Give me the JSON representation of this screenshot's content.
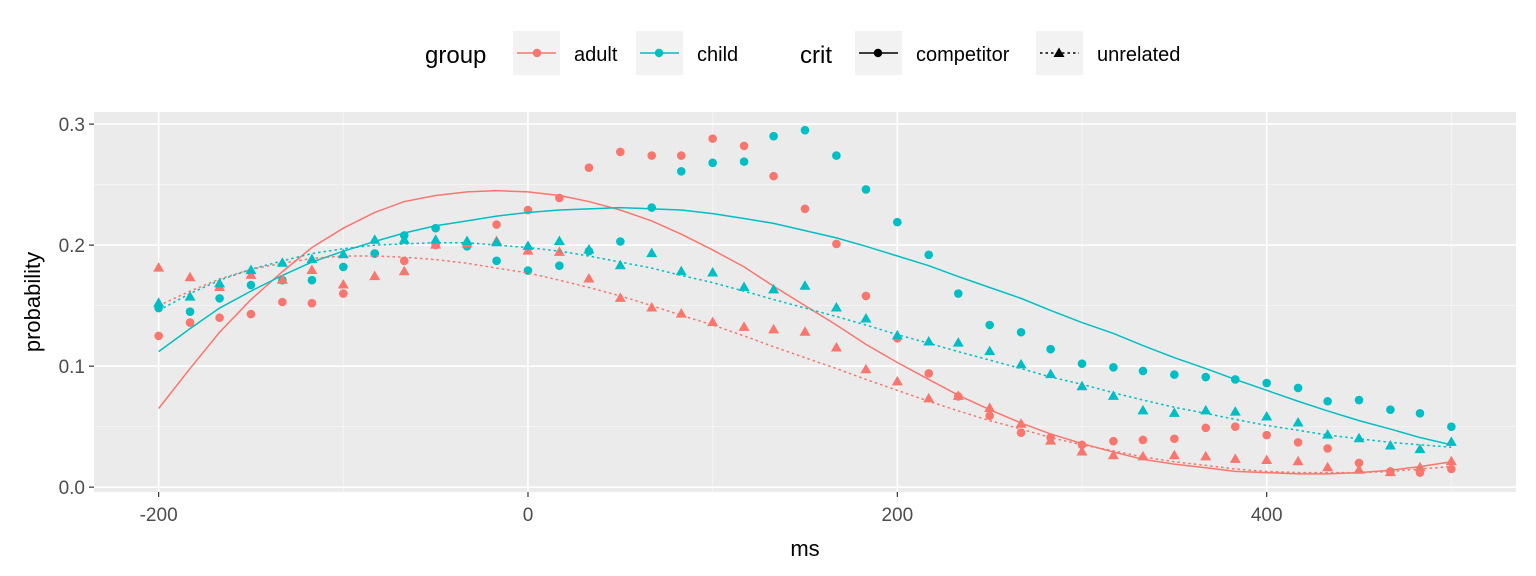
{
  "chart_data": {
    "type": "scatter",
    "xlabel": "ms",
    "ylabel": "probability",
    "xlim": [
      -235,
      535
    ],
    "ylim": [
      -0.004,
      0.31
    ],
    "x_ticks": [
      -200,
      0,
      200,
      400
    ],
    "y_ticks": [
      0.0,
      0.1,
      0.2,
      0.3
    ],
    "x_tick_labels": [
      "-200",
      "0",
      "200",
      "400"
    ],
    "y_tick_labels": [
      "0.0",
      "0.1",
      "0.2",
      "0.3"
    ],
    "grid": true,
    "legend_position": "top",
    "legend": {
      "group_title": "group",
      "crit_title": "crit",
      "group_items": [
        {
          "label": "adult",
          "color": "#F8766D"
        },
        {
          "label": "child",
          "color": "#00BFC4"
        }
      ],
      "crit_items": [
        {
          "label": "competitor",
          "marker": "circle",
          "line": "solid"
        },
        {
          "label": "unrelated",
          "marker": "triangle",
          "line": "dotted"
        }
      ]
    },
    "x": [
      -200,
      -183,
      -167,
      -150,
      -133,
      -117,
      -100,
      -83,
      -67,
      -50,
      -33,
      -17,
      0,
      17,
      33,
      50,
      67,
      83,
      100,
      117,
      133,
      150,
      167,
      183,
      200,
      217,
      233,
      250,
      267,
      283,
      300,
      317,
      333,
      350,
      367,
      383,
      400,
      417,
      433,
      450,
      467,
      483,
      500
    ],
    "series": [
      {
        "name": "adult",
        "crit": "competitor",
        "color": "#F8766D",
        "marker": "circle",
        "points": [
          0.125,
          0.136,
          0.14,
          0.143,
          0.153,
          0.152,
          0.16,
          0.193,
          0.187,
          0.2,
          0.201,
          0.217,
          0.229,
          0.239,
          0.264,
          0.277,
          0.274,
          0.274,
          0.288,
          0.282,
          0.257,
          0.23,
          0.201,
          0.158,
          0.123,
          0.094,
          0.075,
          0.059,
          0.045,
          0.041,
          0.035,
          0.038,
          0.039,
          0.04,
          0.049,
          0.05,
          0.043,
          0.037,
          0.032,
          0.02,
          0.013,
          0.012,
          0.015
        ],
        "curve": [
          0.065,
          0.098,
          0.128,
          0.155,
          0.178,
          0.198,
          0.214,
          0.227,
          0.236,
          0.241,
          0.244,
          0.245,
          0.244,
          0.241,
          0.236,
          0.229,
          0.22,
          0.209,
          0.196,
          0.182,
          0.166,
          0.15,
          0.134,
          0.118,
          0.103,
          0.089,
          0.076,
          0.064,
          0.053,
          0.044,
          0.036,
          0.029,
          0.023,
          0.019,
          0.016,
          0.013,
          0.012,
          0.011,
          0.011,
          0.012,
          0.014,
          0.017,
          0.021
        ]
      },
      {
        "name": "child",
        "crit": "competitor",
        "color": "#00BFC4",
        "marker": "circle",
        "points": [
          0.148,
          0.145,
          0.156,
          0.167,
          0.171,
          0.171,
          0.182,
          0.193,
          0.208,
          0.214,
          0.199,
          0.187,
          0.179,
          0.183,
          0.195,
          0.203,
          0.231,
          0.261,
          0.268,
          0.269,
          0.29,
          0.295,
          0.274,
          0.246,
          0.219,
          0.192,
          0.16,
          0.134,
          0.128,
          0.114,
          0.102,
          0.099,
          0.096,
          0.093,
          0.091,
          0.089,
          0.086,
          0.082,
          0.071,
          0.072,
          0.064,
          0.061,
          0.05
        ],
        "curve": [
          0.112,
          0.131,
          0.148,
          0.162,
          0.175,
          0.186,
          0.195,
          0.203,
          0.21,
          0.216,
          0.22,
          0.224,
          0.227,
          0.229,
          0.23,
          0.231,
          0.23,
          0.229,
          0.226,
          0.222,
          0.218,
          0.212,
          0.206,
          0.199,
          0.191,
          0.183,
          0.174,
          0.165,
          0.156,
          0.146,
          0.136,
          0.127,
          0.117,
          0.107,
          0.098,
          0.089,
          0.08,
          0.071,
          0.063,
          0.055,
          0.048,
          0.041,
          0.035
        ]
      },
      {
        "name": "adult",
        "crit": "unrelated",
        "color": "#F8766D",
        "marker": "triangle",
        "points": [
          0.181,
          0.173,
          0.165,
          0.175,
          0.171,
          0.179,
          0.167,
          0.174,
          0.178,
          0.2,
          0.201,
          0.203,
          0.195,
          0.194,
          0.172,
          0.156,
          0.148,
          0.143,
          0.136,
          0.132,
          0.13,
          0.128,
          0.115,
          0.097,
          0.087,
          0.073,
          0.075,
          0.065,
          0.052,
          0.038,
          0.029,
          0.026,
          0.025,
          0.026,
          0.025,
          0.023,
          0.022,
          0.021,
          0.016,
          0.014,
          0.012,
          0.016,
          0.021
        ],
        "curve": [
          0.15,
          0.162,
          0.172,
          0.18,
          0.185,
          0.189,
          0.191,
          0.191,
          0.19,
          0.188,
          0.185,
          0.181,
          0.177,
          0.171,
          0.165,
          0.158,
          0.15,
          0.142,
          0.134,
          0.125,
          0.116,
          0.107,
          0.098,
          0.089,
          0.08,
          0.071,
          0.063,
          0.055,
          0.048,
          0.041,
          0.035,
          0.03,
          0.025,
          0.021,
          0.018,
          0.015,
          0.013,
          0.012,
          0.012,
          0.012,
          0.013,
          0.015,
          0.017
        ]
      },
      {
        "name": "child",
        "crit": "unrelated",
        "color": "#00BFC4",
        "marker": "triangle",
        "points": [
          0.152,
          0.157,
          0.168,
          0.179,
          0.185,
          0.188,
          0.192,
          0.204,
          0.204,
          0.204,
          0.203,
          0.202,
          0.199,
          0.203,
          0.196,
          0.183,
          0.193,
          0.178,
          0.177,
          0.165,
          0.163,
          0.166,
          0.148,
          0.139,
          0.125,
          0.12,
          0.119,
          0.112,
          0.101,
          0.093,
          0.083,
          0.075,
          0.063,
          0.061,
          0.063,
          0.062,
          0.058,
          0.053,
          0.043,
          0.04,
          0.034,
          0.031,
          0.037
        ],
        "curve": [
          0.146,
          0.16,
          0.171,
          0.18,
          0.187,
          0.193,
          0.197,
          0.2,
          0.201,
          0.202,
          0.202,
          0.2,
          0.198,
          0.195,
          0.191,
          0.186,
          0.181,
          0.175,
          0.169,
          0.162,
          0.155,
          0.148,
          0.141,
          0.134,
          0.126,
          0.119,
          0.112,
          0.105,
          0.098,
          0.091,
          0.085,
          0.078,
          0.072,
          0.066,
          0.061,
          0.056,
          0.051,
          0.047,
          0.043,
          0.04,
          0.037,
          0.035,
          0.033
        ]
      }
    ]
  }
}
